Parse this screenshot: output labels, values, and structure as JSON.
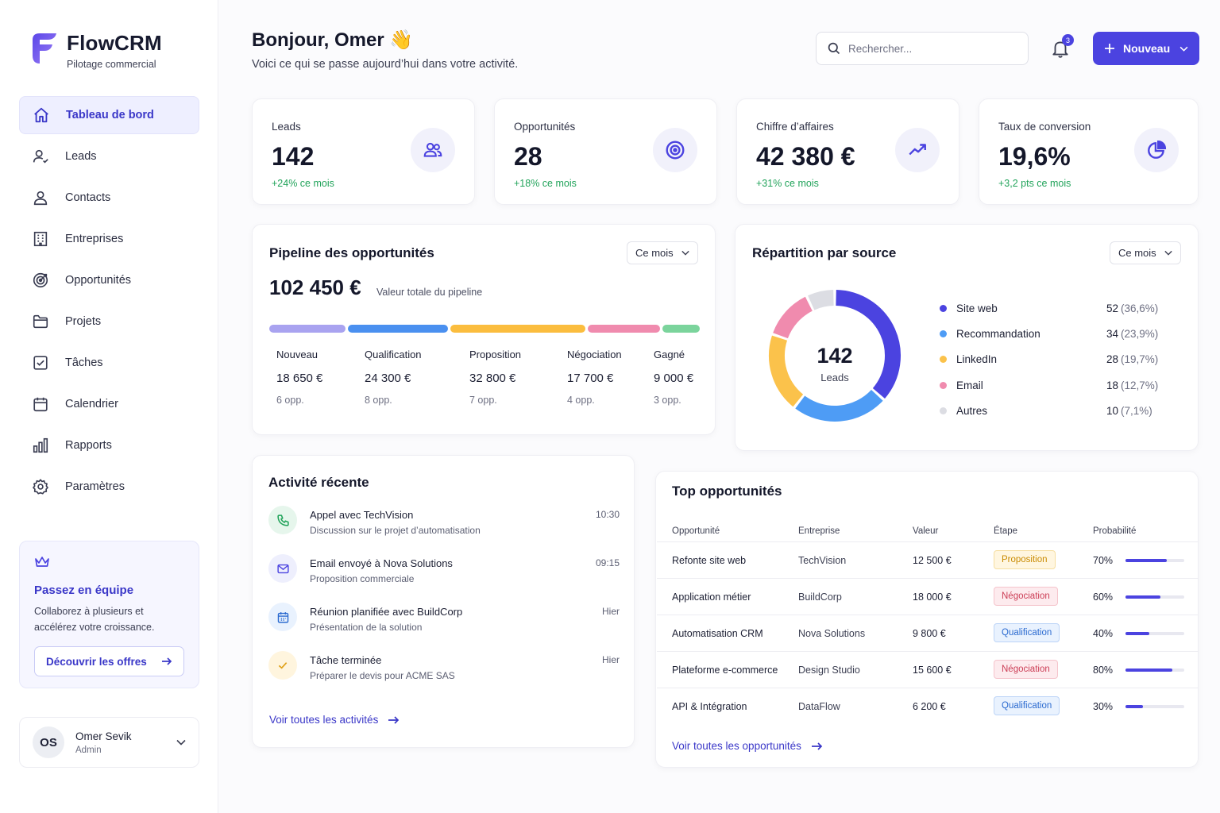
{
  "brand": {
    "name": "FlowCRM",
    "subtitle": "Pilotage commercial"
  },
  "nav": [
    {
      "label": "Tableau de bord",
      "icon": "home-icon",
      "active": true
    },
    {
      "label": "Leads",
      "icon": "lead-icon"
    },
    {
      "label": "Contacts",
      "icon": "contact-icon"
    },
    {
      "label": "Entreprises",
      "icon": "building-icon"
    },
    {
      "label": "Opportunités",
      "icon": "target-icon"
    },
    {
      "label": "Projets",
      "icon": "folder-icon"
    },
    {
      "label": "Tâches",
      "icon": "checkbox-icon"
    },
    {
      "label": "Calendrier",
      "icon": "calendar-icon"
    },
    {
      "label": "Rapports",
      "icon": "bar-chart-icon"
    },
    {
      "label": "Paramètres",
      "icon": "gear-icon"
    }
  ],
  "promo": {
    "title": "Passez en équipe",
    "text": "Collaborez à plusieurs et accélérez votre croissance.",
    "button": "Découvrir les offres"
  },
  "user": {
    "initials": "OS",
    "name": "Omer Sevik",
    "role": "Admin"
  },
  "header": {
    "greeting": "Bonjour, Omer 👋",
    "subtitle": "Voici ce qui se passe aujourd’hui dans votre activité.",
    "search_placeholder": "Rechercher...",
    "notifications": "3",
    "new_button": "Nouveau"
  },
  "kpis": [
    {
      "label": "Leads",
      "value": "142",
      "delta": "+24% ce mois",
      "icon": "users-icon"
    },
    {
      "label": "Opportunités",
      "value": "28",
      "delta": "+18% ce mois",
      "icon": "target-icon"
    },
    {
      "label": "Chiffre d’affaires",
      "value": "42 380 €",
      "delta": "+31% ce mois",
      "icon": "trend-up-icon"
    },
    {
      "label": "Taux de conversion",
      "value": "19,6%",
      "delta": "+3,2 pts ce mois",
      "icon": "pie-chart-icon"
    }
  ],
  "pipeline": {
    "title": "Pipeline des opportunités",
    "period": "Ce mois",
    "total": "102 450 €",
    "total_label": "Valeur totale du pipeline",
    "stages": [
      {
        "name": "Nouveau",
        "value": "18 650 €",
        "count": "6 opp.",
        "amount": 18650,
        "color": "#a9a3f0"
      },
      {
        "name": "Qualification",
        "value": "24 300 €",
        "count": "8 opp.",
        "amount": 24300,
        "color": "#4a90f0"
      },
      {
        "name": "Proposition",
        "value": "32 800 €",
        "count": "7 opp.",
        "amount": 32800,
        "color": "#fbbd3e"
      },
      {
        "name": "Négociation",
        "value": "17 700 €",
        "count": "4 opp.",
        "amount": 17700,
        "color": "#f08bae"
      },
      {
        "name": "Gagné",
        "value": "9 000 €",
        "count": "3 opp.",
        "amount": 9000,
        "color": "#7bd49c"
      }
    ]
  },
  "sources": {
    "title": "Répartition par source",
    "period": "Ce mois",
    "center_value": "142",
    "center_label": "Leads",
    "items": [
      {
        "name": "Site web",
        "count": "52",
        "pct": "(36,6%)",
        "value": 52,
        "color": "#4b43e0"
      },
      {
        "name": "Recommandation",
        "count": "34",
        "pct": "(23,9%)",
        "value": 34,
        "color": "#4e9cf5"
      },
      {
        "name": "LinkedIn",
        "count": "28",
        "pct": "(19,7%)",
        "value": 28,
        "color": "#fbc24b"
      },
      {
        "name": "Email",
        "count": "18",
        "pct": "(12,7%)",
        "value": 18,
        "color": "#f08bae"
      },
      {
        "name": "Autres",
        "count": "10",
        "pct": "(7,1%)",
        "value": 10,
        "color": "#dcdde3"
      }
    ]
  },
  "activity": {
    "title": "Activité récente",
    "items": [
      {
        "title": "Appel avec TechVision",
        "sub": "Discussion sur le projet d’automatisation",
        "time": "10:30",
        "icon": "phone-icon",
        "color": "#21a35a",
        "bg": "#e6f6ec"
      },
      {
        "title": "Email envoyé à Nova Solutions",
        "sub": "Proposition commerciale",
        "time": "09:15",
        "icon": "mail-icon",
        "color": "#4b43e0",
        "bg": "#eeeffd"
      },
      {
        "title": "Réunion planifiée avec BuildCorp",
        "sub": "Présentation de la solution",
        "time": "Hier",
        "icon": "calendar-icon",
        "color": "#2c6bd0",
        "bg": "#e9f2fe"
      },
      {
        "title": "Tâche terminée",
        "sub": "Préparer le devis pour ACME SAS",
        "time": "Hier",
        "icon": "check-icon",
        "color": "#e0a21a",
        "bg": "#fff5de"
      }
    ],
    "link": "Voir toutes les activités"
  },
  "top": {
    "title": "Top opportunités",
    "columns": [
      "Opportunité",
      "Entreprise",
      "Valeur",
      "Étape",
      "Probabilité"
    ],
    "rows": [
      {
        "name": "Refonte site web",
        "company": "TechVision",
        "value": "12 500 €",
        "stage": "Proposition",
        "kind": "prop",
        "prob": "70%",
        "p": 0.7
      },
      {
        "name": "Application métier",
        "company": "BuildCorp",
        "value": "18 000 €",
        "stage": "Négociation",
        "kind": "nego",
        "prob": "60%",
        "p": 0.6
      },
      {
        "name": "Automatisation CRM",
        "company": "Nova Solutions",
        "value": "9 800 €",
        "stage": "Qualification",
        "kind": "qual",
        "prob": "40%",
        "p": 0.4
      },
      {
        "name": "Plateforme e-commerce",
        "company": "Design Studio",
        "value": "15 600 €",
        "stage": "Négociation",
        "kind": "nego",
        "prob": "80%",
        "p": 0.8
      },
      {
        "name": "API & Intégration",
        "company": "DataFlow",
        "value": "6 200 €",
        "stage": "Qualification",
        "kind": "qual",
        "prob": "30%",
        "p": 0.3
      }
    ],
    "link": "Voir toutes les opportunités"
  }
}
